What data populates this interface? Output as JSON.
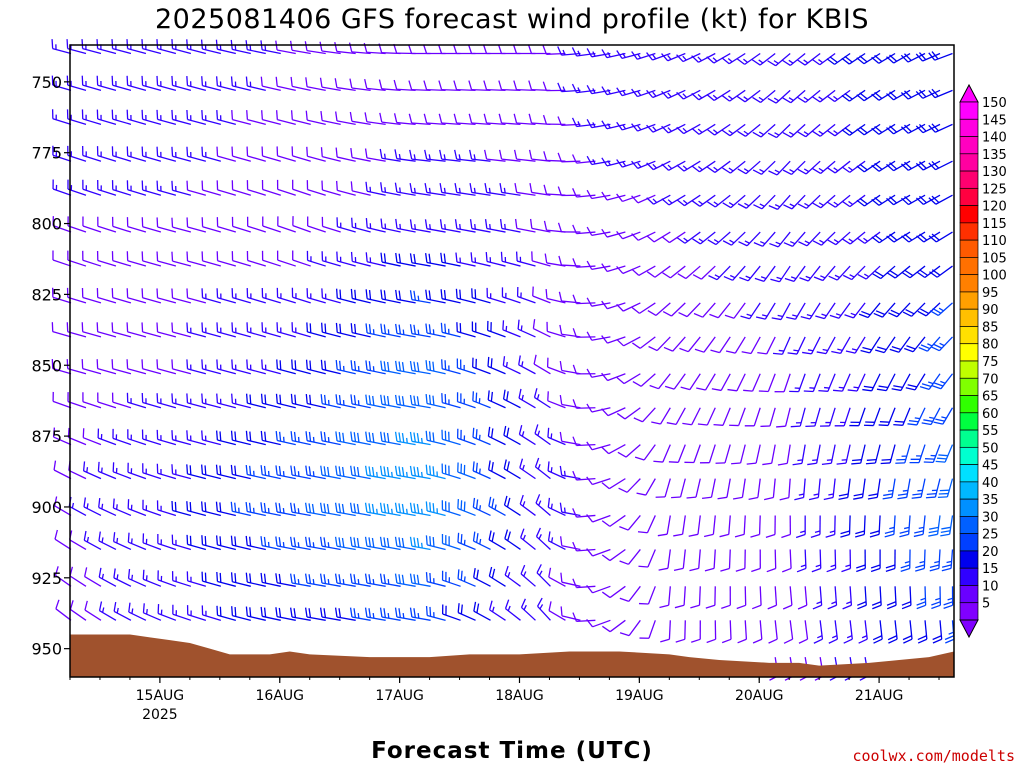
{
  "chart_data": {
    "type": "wind-barb-profile",
    "title": "2025081406 GFS forecast wind profile (kt) for KBIS",
    "xlabel": "Forecast Time (UTC)",
    "ylabel": "",
    "credit": "coolwx.com/modelts",
    "x_ticks": [
      {
        "label": "15AUG",
        "sub": "2025",
        "hours": 18
      },
      {
        "label": "16AUG",
        "sub": "",
        "hours": 42
      },
      {
        "label": "17AUG",
        "sub": "",
        "hours": 66
      },
      {
        "label": "18AUG",
        "sub": "",
        "hours": 90
      },
      {
        "label": "19AUG",
        "sub": "",
        "hours": 114
      },
      {
        "label": "20AUG",
        "sub": "",
        "hours": 138
      },
      {
        "label": "21AUG",
        "sub": "",
        "hours": 162
      }
    ],
    "xlim_hours": [
      0,
      177
    ],
    "y_ticks": [
      750,
      775,
      800,
      825,
      850,
      875,
      900,
      925,
      950
    ],
    "ylim_hPa": [
      737,
      960
    ],
    "pressure_levels": [
      740,
      753,
      765,
      778,
      790,
      803,
      815,
      828,
      840,
      853,
      865,
      878,
      890,
      903,
      915,
      928,
      940,
      953
    ],
    "colorbar": {
      "min": 5,
      "max": 150,
      "step": 5,
      "labels": [
        150,
        145,
        140,
        135,
        130,
        125,
        120,
        115,
        110,
        105,
        100,
        95,
        90,
        85,
        80,
        75,
        70,
        65,
        60,
        55,
        50,
        45,
        40,
        35,
        30,
        25,
        20,
        15,
        10,
        5
      ],
      "colors": {
        "5": "#8000ff",
        "10": "#6a00ff",
        "15": "#3000ff",
        "20": "#0000ee",
        "25": "#0040ff",
        "30": "#0060ff",
        "35": "#0090ff",
        "40": "#00b8ff",
        "45": "#00e0ff",
        "50": "#00ffd0",
        "55": "#00ff90",
        "60": "#00ff40",
        "65": "#30ff00",
        "70": "#80ff00",
        "75": "#c0ff00",
        "80": "#ffff00",
        "85": "#ffe000",
        "90": "#ffc000",
        "95": "#ffa000",
        "100": "#ff8000",
        "105": "#ff7000",
        "110": "#ff5a00",
        "115": "#ff3000",
        "120": "#ff0000",
        "125": "#ff0040",
        "130": "#ff0070",
        "135": "#ff00a0",
        "140": "#ff00c0",
        "145": "#ff00e0",
        "150": "#ff00ff"
      }
    },
    "terrain": {
      "color": "#a0522d",
      "surface_hPa": [
        [
          0,
          945
        ],
        [
          12,
          945
        ],
        [
          16,
          946
        ],
        [
          20,
          947
        ],
        [
          24,
          948
        ],
        [
          28,
          950
        ],
        [
          32,
          952
        ],
        [
          40,
          952
        ],
        [
          44,
          951
        ],
        [
          48,
          952
        ],
        [
          60,
          953
        ],
        [
          72,
          953
        ],
        [
          80,
          952
        ],
        [
          90,
          952
        ],
        [
          100,
          951
        ],
        [
          110,
          951
        ],
        [
          120,
          952
        ],
        [
          124,
          953
        ],
        [
          130,
          954
        ],
        [
          140,
          955
        ],
        [
          146,
          955
        ],
        [
          150,
          956
        ],
        [
          160,
          955
        ],
        [
          166,
          954
        ],
        [
          172,
          953
        ],
        [
          177,
          951
        ]
      ]
    },
    "wind_fields": {
      "anchors_hours": [
        0,
        24,
        48,
        72,
        96,
        120,
        144,
        168,
        177
      ],
      "direction_deg": [
        {
          "p": 740,
          "v": [
            285,
            285,
            280,
            270,
            270,
            250,
            230,
            240,
            250
          ]
        },
        {
          "p": 800,
          "v": [
            290,
            285,
            290,
            280,
            280,
            240,
            220,
            240,
            240
          ]
        },
        {
          "p": 850,
          "v": [
            285,
            285,
            285,
            280,
            300,
            220,
            200,
            210,
            220
          ]
        },
        {
          "p": 900,
          "v": [
            300,
            285,
            280,
            280,
            310,
            190,
            180,
            185,
            190
          ]
        },
        {
          "p": 955,
          "v": [
            310,
            290,
            280,
            280,
            320,
            180,
            170,
            170,
            170
          ]
        }
      ],
      "speed_kt": [
        {
          "p": 740,
          "v": [
            15,
            15,
            12,
            10,
            12,
            15,
            15,
            20,
            20
          ]
        },
        {
          "p": 800,
          "v": [
            12,
            12,
            10,
            15,
            12,
            12,
            15,
            18,
            20
          ]
        },
        {
          "p": 850,
          "v": [
            10,
            12,
            18,
            30,
            12,
            10,
            12,
            20,
            25
          ]
        },
        {
          "p": 900,
          "v": [
            12,
            18,
            28,
            38,
            14,
            10,
            12,
            25,
            30
          ]
        },
        {
          "p": 955,
          "v": [
            10,
            15,
            18,
            20,
            12,
            8,
            10,
            18,
            20
          ]
        }
      ]
    }
  }
}
